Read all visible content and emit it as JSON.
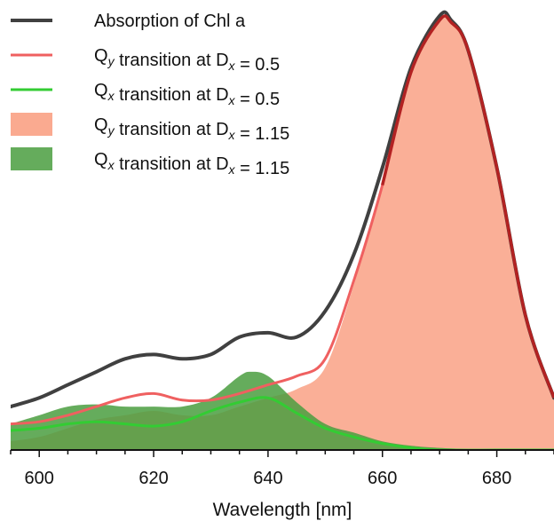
{
  "chart_data": {
    "type": "area",
    "title": "",
    "xlabel": "Wavelength [nm]",
    "ylabel": "",
    "xlim": [
      595,
      690
    ],
    "ylim": [
      0,
      1.02
    ],
    "grid": false,
    "legend_position": "top-left",
    "x_ticks": [
      600,
      620,
      640,
      660,
      680
    ],
    "series": [
      {
        "name": "Absorption of Chl a",
        "style": "line",
        "color": "#404040",
        "x": [
          595,
          600,
          605,
          610,
          615,
          620,
          625,
          630,
          635,
          640,
          645,
          650,
          655,
          660,
          665,
          670,
          672,
          675,
          680,
          685,
          690
        ],
        "y": [
          0.1,
          0.12,
          0.15,
          0.18,
          0.21,
          0.22,
          0.21,
          0.22,
          0.26,
          0.27,
          0.26,
          0.32,
          0.45,
          0.65,
          0.88,
          1.0,
          0.99,
          0.92,
          0.65,
          0.31,
          0.12
        ]
      },
      {
        "name": "Q_y transition at D_x = 0.5",
        "style": "line",
        "color": "#ef6060",
        "x": [
          595,
          600,
          605,
          610,
          615,
          620,
          625,
          630,
          635,
          640,
          645,
          650,
          655,
          660,
          665,
          670,
          672,
          675,
          680,
          685,
          690
        ],
        "y": [
          0.06,
          0.065,
          0.08,
          0.1,
          0.12,
          0.13,
          0.115,
          0.115,
          0.13,
          0.15,
          0.17,
          0.21,
          0.39,
          0.61,
          0.87,
          0.99,
          0.985,
          0.92,
          0.65,
          0.31,
          0.12
        ]
      },
      {
        "name": "Q_x transition at D_x = 0.5",
        "style": "line",
        "color": "#33cc33",
        "x": [
          595,
          600,
          605,
          610,
          615,
          620,
          625,
          630,
          635,
          640,
          645,
          650,
          655,
          660,
          665,
          670,
          680,
          690
        ],
        "y": [
          0.045,
          0.05,
          0.06,
          0.065,
          0.06,
          0.055,
          0.065,
          0.09,
          0.11,
          0.12,
          0.085,
          0.05,
          0.03,
          0.015,
          0.005,
          0.0,
          0.0,
          0.0
        ]
      },
      {
        "name": "Q_y transition at D_x = 1.15",
        "style": "area",
        "color": "#f99b7d",
        "x": [
          595,
          600,
          605,
          610,
          615,
          620,
          625,
          630,
          635,
          640,
          645,
          650,
          655,
          660,
          665,
          670,
          672,
          675,
          680,
          685,
          690
        ],
        "y": [
          0.02,
          0.03,
          0.05,
          0.07,
          0.08,
          0.09,
          0.08,
          0.08,
          0.1,
          0.12,
          0.14,
          0.19,
          0.38,
          0.61,
          0.87,
          0.99,
          0.985,
          0.92,
          0.65,
          0.31,
          0.12
        ]
      },
      {
        "name": "Q_x transition at D_x = 1.15",
        "style": "area",
        "color": "#4a9e3f",
        "x": [
          595,
          600,
          605,
          610,
          615,
          620,
          625,
          630,
          635,
          637,
          640,
          645,
          650,
          655,
          660,
          665,
          670,
          680,
          690
        ],
        "y": [
          0.06,
          0.08,
          0.1,
          0.105,
          0.1,
          0.1,
          0.1,
          0.12,
          0.17,
          0.18,
          0.17,
          0.11,
          0.06,
          0.04,
          0.02,
          0.01,
          0.005,
          0.0,
          0.0
        ]
      }
    ]
  },
  "legend": [
    {
      "main": "Absorption of Chl a",
      "sub": "",
      "mid": "",
      "sub2": "",
      "tail": "",
      "color": "#404040",
      "kind": "line"
    },
    {
      "main": "Q",
      "sub": "y",
      "mid": " transition at D",
      "sub2": "x",
      "tail": " = 0.5",
      "color": "#ef6060",
      "kind": "line"
    },
    {
      "main": "Q",
      "sub": "x",
      "mid": " transition at D",
      "sub2": "x",
      "tail": " = 0.5",
      "color": "#33cc33",
      "kind": "line"
    },
    {
      "main": "Q",
      "sub": "y",
      "mid": " transition at D",
      "sub2": "x",
      "tail": " = 1.15",
      "color": "#f99b7d",
      "kind": "patch"
    },
    {
      "main": "Q",
      "sub": "x",
      "mid": " transition at D",
      "sub2": "x",
      "tail": " = 1.15",
      "color": "#4a9e3f",
      "kind": "patch"
    }
  ]
}
